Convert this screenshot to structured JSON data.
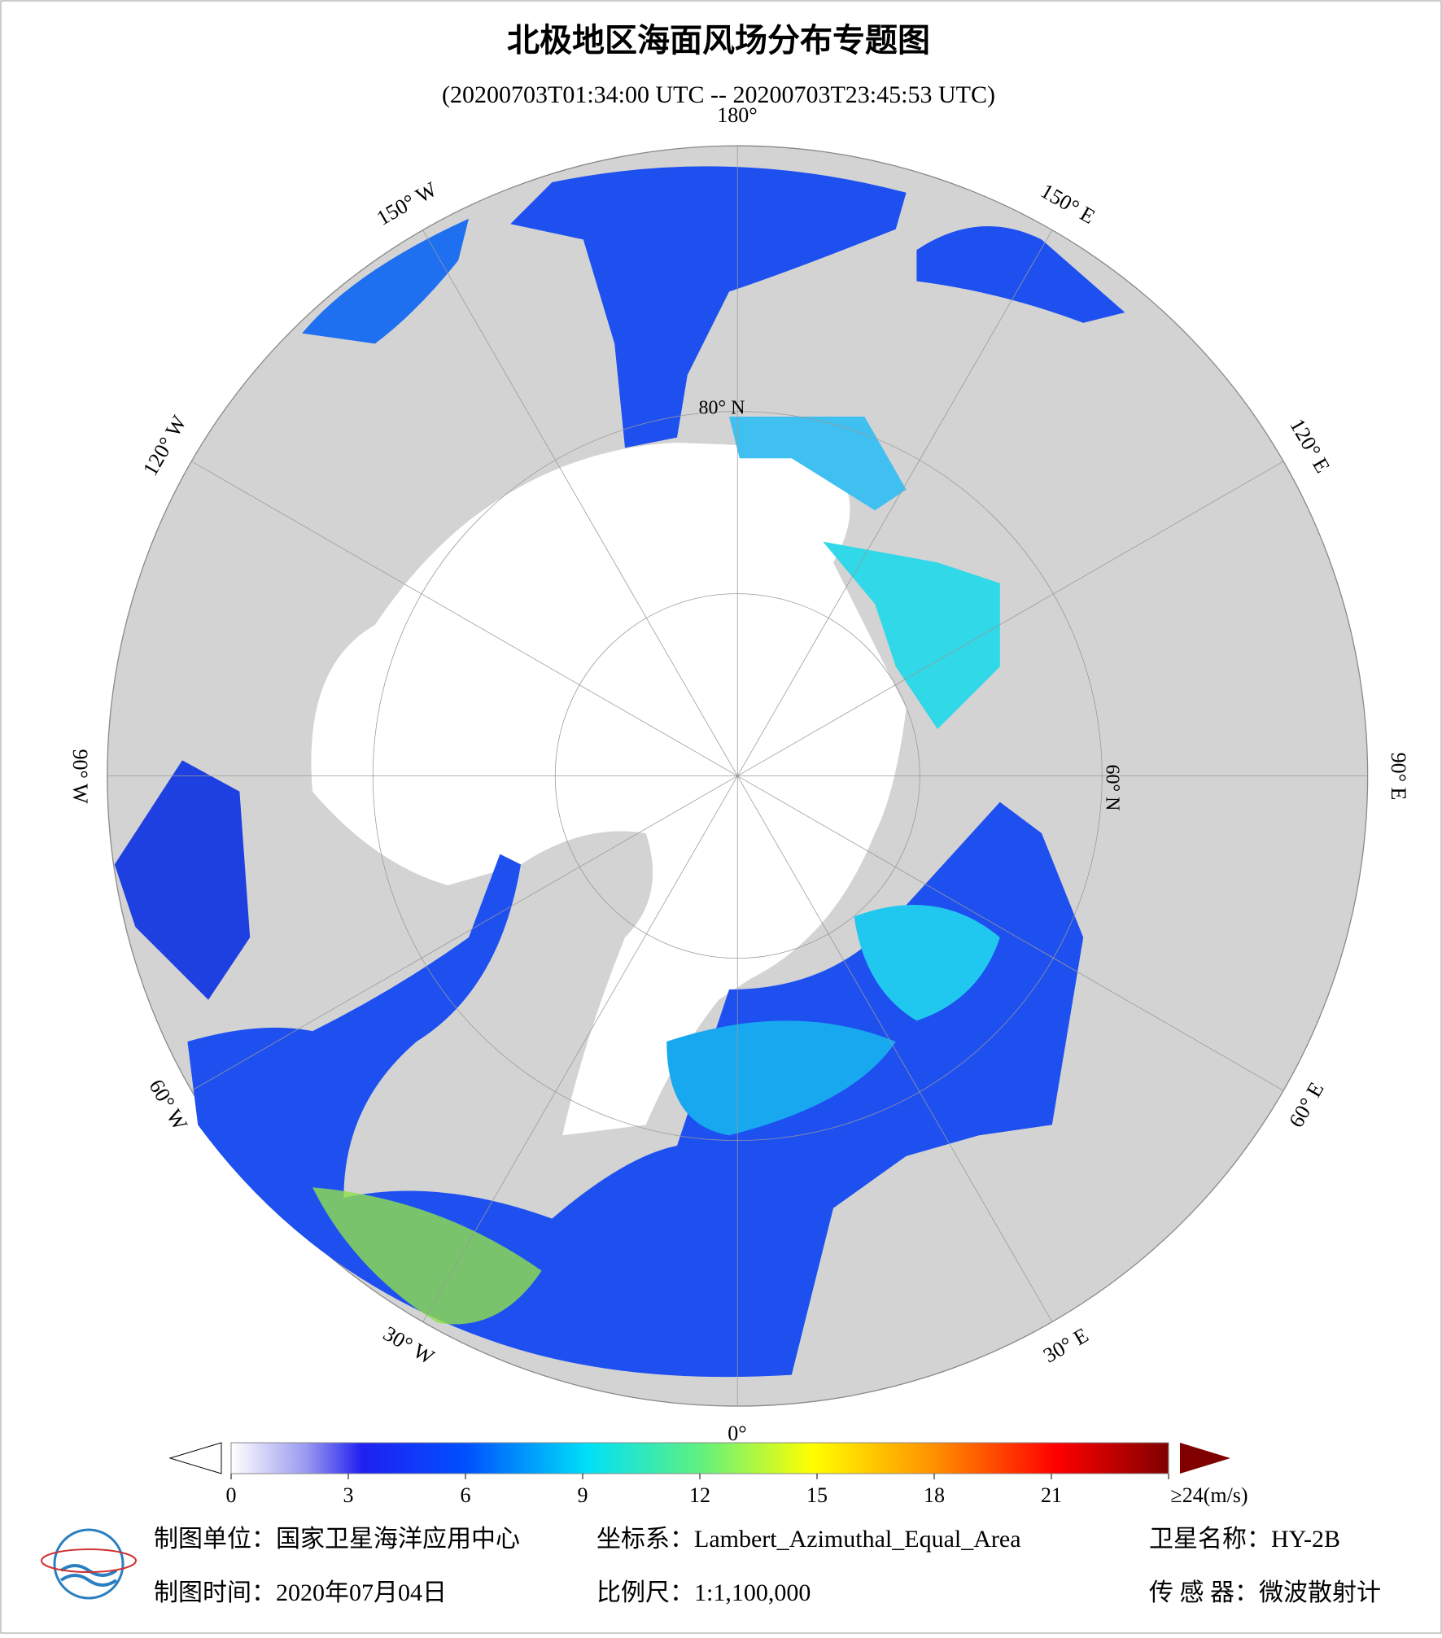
{
  "header": {
    "title": "北极地区海面风场分布专题图",
    "subtitle": "(20200703T01:34:00 UTC -- 20200703T23:45:53 UTC)"
  },
  "map": {
    "longitude_labels": [
      {
        "lon": 180,
        "label": "180°"
      },
      {
        "lon": 150,
        "label": "150° E"
      },
      {
        "lon": 120,
        "label": "120° E"
      },
      {
        "lon": 90,
        "label": "90° E"
      },
      {
        "lon": 60,
        "label": "60° E"
      },
      {
        "lon": 30,
        "label": "30° E"
      },
      {
        "lon": 0,
        "label": "0°"
      },
      {
        "lon": -30,
        "label": "30° W"
      },
      {
        "lon": -60,
        "label": "60° W"
      },
      {
        "lon": -90,
        "label": "90° W"
      },
      {
        "lon": -120,
        "label": "120° W"
      },
      {
        "lon": -150,
        "label": "150° W"
      }
    ],
    "latitude_labels": [
      "80° N",
      "60° N"
    ]
  },
  "colorbar": {
    "range": [
      0,
      24
    ],
    "ticks": [
      0,
      3,
      6,
      9,
      12,
      15,
      18,
      21,
      {
        "value": 24,
        "label": "≥24(m/s)"
      }
    ]
  },
  "footer": {
    "unit": "制图单位：国家卫星海洋应用中心",
    "projection": "坐标系：Lambert_Azimuthal_Equal_Area",
    "satellite": "卫星名称：HY-2B",
    "date": "制图时间：2020年07月04日",
    "scale": "比例尺：1:1,100,000",
    "sensor": "传 感 器：微波散射计"
  }
}
